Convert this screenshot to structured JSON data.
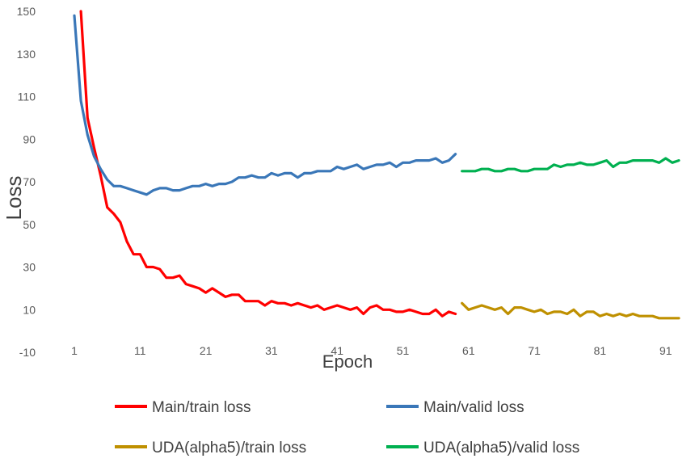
{
  "chart_data": {
    "type": "line",
    "title": "",
    "xlabel": "Epoch",
    "ylabel": "Loss",
    "xlim": [
      1,
      93
    ],
    "ylim": [
      -10,
      150
    ],
    "x_ticks": [
      1,
      11,
      21,
      31,
      41,
      51,
      61,
      71,
      81,
      91
    ],
    "y_ticks": [
      -10,
      10,
      30,
      50,
      70,
      90,
      110,
      130,
      150
    ],
    "grid": false,
    "legend_position": "bottom",
    "series": [
      {
        "name": "Main/train loss",
        "color": "#ff0000",
        "x": [
          2,
          3,
          4,
          5,
          6,
          7,
          8,
          9,
          10,
          11,
          12,
          13,
          14,
          15,
          16,
          17,
          18,
          19,
          20,
          21,
          22,
          23,
          24,
          25,
          26,
          27,
          28,
          29,
          30,
          31,
          32,
          33,
          34,
          35,
          36,
          37,
          38,
          39,
          40,
          41,
          42,
          43,
          44,
          45,
          46,
          47,
          48,
          49,
          50,
          51,
          52,
          53,
          54,
          55,
          56,
          57,
          58,
          59
        ],
        "values": [
          150,
          100,
          86,
          73,
          58,
          55,
          51,
          42,
          36,
          36,
          30,
          30,
          29,
          25,
          25,
          26,
          22,
          21,
          20,
          18,
          20,
          18,
          16,
          17,
          17,
          14,
          14,
          14,
          12,
          14,
          13,
          13,
          12,
          13,
          12,
          11,
          12,
          10,
          11,
          12,
          11,
          10,
          11,
          8,
          11,
          12,
          10,
          10,
          9,
          9,
          10,
          9,
          8,
          8,
          10,
          7,
          9,
          8
        ]
      },
      {
        "name": "Main/valid loss",
        "color": "#3a77b8",
        "x": [
          1,
          2,
          3,
          4,
          5,
          6,
          7,
          8,
          9,
          10,
          11,
          12,
          13,
          14,
          15,
          16,
          17,
          18,
          19,
          20,
          21,
          22,
          23,
          24,
          25,
          26,
          27,
          28,
          29,
          30,
          31,
          32,
          33,
          34,
          35,
          36,
          37,
          38,
          39,
          40,
          41,
          42,
          43,
          44,
          45,
          46,
          47,
          48,
          49,
          50,
          51,
          52,
          53,
          54,
          55,
          56,
          57,
          58,
          59
        ],
        "values": [
          148,
          108,
          92,
          82,
          76,
          71,
          68,
          68,
          67,
          66,
          65,
          64,
          66,
          67,
          67,
          66,
          66,
          67,
          68,
          68,
          69,
          68,
          69,
          69,
          70,
          72,
          72,
          73,
          72,
          72,
          74,
          73,
          74,
          74,
          72,
          74,
          74,
          75,
          75,
          75,
          77,
          76,
          77,
          78,
          76,
          77,
          78,
          78,
          79,
          77,
          79,
          79,
          80,
          80,
          80,
          81,
          79,
          80,
          83
        ]
      },
      {
        "name": "UDA(alpha5)/train loss",
        "color": "#bf9000",
        "x": [
          60,
          61,
          62,
          63,
          64,
          65,
          66,
          67,
          68,
          69,
          70,
          71,
          72,
          73,
          74,
          75,
          76,
          77,
          78,
          79,
          80,
          81,
          82,
          83,
          84,
          85,
          86,
          87,
          88,
          89,
          90,
          91,
          92,
          93
        ],
        "values": [
          13,
          10,
          11,
          12,
          11,
          10,
          11,
          8,
          11,
          11,
          10,
          9,
          10,
          8,
          9,
          9,
          8,
          10,
          7,
          9,
          9,
          7,
          8,
          7,
          8,
          7,
          8,
          7,
          7,
          7,
          6,
          6,
          6,
          6
        ]
      },
      {
        "name": "UDA(alpha5)/valid loss",
        "color": "#00b050",
        "x": [
          60,
          61,
          62,
          63,
          64,
          65,
          66,
          67,
          68,
          69,
          70,
          71,
          72,
          73,
          74,
          75,
          76,
          77,
          78,
          79,
          80,
          81,
          82,
          83,
          84,
          85,
          86,
          87,
          88,
          89,
          90,
          91,
          92,
          93
        ],
        "values": [
          75,
          75,
          75,
          76,
          76,
          75,
          75,
          76,
          76,
          75,
          75,
          76,
          76,
          76,
          78,
          77,
          78,
          78,
          79,
          78,
          78,
          79,
          80,
          77,
          79,
          79,
          80,
          80,
          80,
          80,
          79,
          81,
          79,
          80
        ]
      }
    ]
  }
}
